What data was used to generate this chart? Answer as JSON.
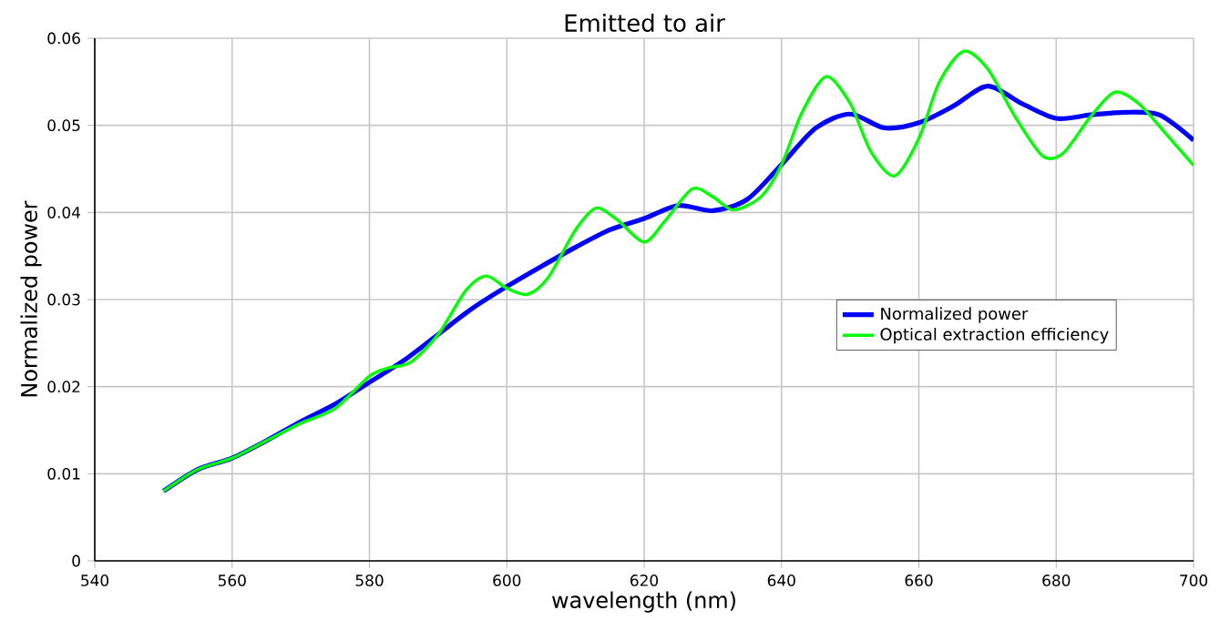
{
  "chart_data": {
    "type": "line",
    "title": "Emitted to air",
    "xlabel": "wavelength (nm)",
    "ylabel": "Normalized power",
    "xlim": [
      540,
      700
    ],
    "xticks": [
      540,
      560,
      580,
      600,
      620,
      640,
      660,
      680,
      700
    ],
    "ylim": [
      0,
      0.06
    ],
    "yticks": [
      0,
      0.01,
      0.02,
      0.03,
      0.04,
      0.05,
      0.06
    ],
    "grid": true,
    "legend": "right",
    "marker": "none",
    "line_style": "solid",
    "series": [
      {
        "name": "Normalized power",
        "color": "#0000ff",
        "x": [
          550,
          555,
          560,
          565,
          570,
          575,
          580,
          585,
          590,
          595,
          600,
          605,
          610,
          615,
          620,
          625,
          630,
          635,
          640,
          645,
          650,
          655,
          660,
          665,
          670,
          675,
          680,
          685,
          690,
          695,
          700
        ],
        "values": [
          0.008,
          0.0105,
          0.0118,
          0.0138,
          0.016,
          0.018,
          0.0205,
          0.023,
          0.026,
          0.029,
          0.0315,
          0.0338,
          0.036,
          0.038,
          0.0393,
          0.0408,
          0.0402,
          0.0415,
          0.0455,
          0.0497,
          0.0513,
          0.0497,
          0.0503,
          0.0522,
          0.0545,
          0.0525,
          0.0508,
          0.0512,
          0.0515,
          0.0512,
          0.0483
        ]
      },
      {
        "name": "Optical extraction efficiency",
        "color": "#00ff00",
        "x": [
          550,
          555,
          560,
          565,
          570,
          575,
          580,
          583,
          586,
          590,
          594,
          597,
          600,
          603,
          606,
          610,
          613,
          616,
          620,
          623,
          627,
          630,
          633,
          637,
          640,
          643,
          646.5,
          650,
          653,
          656.5,
          660,
          663,
          666.5,
          670,
          674,
          678,
          681,
          685,
          688.5,
          692,
          696,
          700
        ],
        "values": [
          0.008,
          0.0105,
          0.0118,
          0.0138,
          0.0158,
          0.0175,
          0.0212,
          0.0222,
          0.0228,
          0.026,
          0.031,
          0.0327,
          0.0313,
          0.0306,
          0.0325,
          0.038,
          0.0405,
          0.0392,
          0.0366,
          0.039,
          0.0427,
          0.0418,
          0.0403,
          0.0418,
          0.0455,
          0.0515,
          0.0556,
          0.0525,
          0.047,
          0.0442,
          0.0485,
          0.055,
          0.0585,
          0.0565,
          0.051,
          0.0465,
          0.0468,
          0.051,
          0.0538,
          0.0525,
          0.049,
          0.0454
        ]
      }
    ]
  }
}
